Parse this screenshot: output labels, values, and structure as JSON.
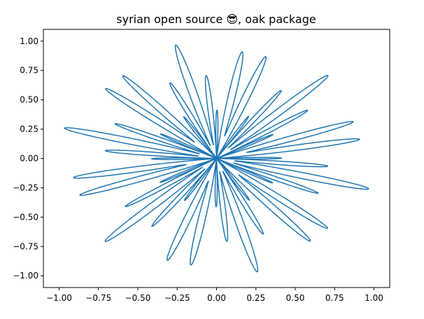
{
  "chart_data": {
    "type": "line",
    "title": "syrian open source 😎, oak package",
    "xlabel": "",
    "ylabel": "",
    "xlim": [
      -1.1,
      1.1
    ],
    "ylim": [
      -1.1,
      1.1
    ],
    "xticks": [
      {
        "value": -1.0,
        "label": "−1.00"
      },
      {
        "value": -0.75,
        "label": "−0.75"
      },
      {
        "value": -0.5,
        "label": "−0.50"
      },
      {
        "value": -0.25,
        "label": "−0.25"
      },
      {
        "value": 0.0,
        "label": "0.00"
      },
      {
        "value": 0.25,
        "label": "0.25"
      },
      {
        "value": 0.5,
        "label": "0.50"
      },
      {
        "value": 0.75,
        "label": "0.75"
      },
      {
        "value": 1.0,
        "label": "1.00"
      }
    ],
    "yticks": [
      {
        "value": 1.0,
        "label": "1.00"
      },
      {
        "value": 0.75,
        "label": "0.75"
      },
      {
        "value": 0.5,
        "label": "0.50"
      },
      {
        "value": 0.25,
        "label": "0.25"
      },
      {
        "value": 0.0,
        "label": "0.00"
      },
      {
        "value": -0.25,
        "label": "−0.25"
      },
      {
        "value": -0.5,
        "label": "−0.50"
      },
      {
        "value": -0.75,
        "label": "−0.75"
      },
      {
        "value": -1.0,
        "label": "−1.00"
      }
    ],
    "grid": false,
    "legend": "none",
    "series": [
      {
        "color": "#1f77b4",
        "curve": {
          "kind": "polar",
          "theta_range": [
            0,
            6.2832
          ],
          "samples": 4000,
          "components": [
            {
              "amp": 0.6,
              "sin_frequency": 6
            },
            {
              "amp": 0.4,
              "cos_frequency": 36
            }
          ]
        }
      }
    ]
  }
}
